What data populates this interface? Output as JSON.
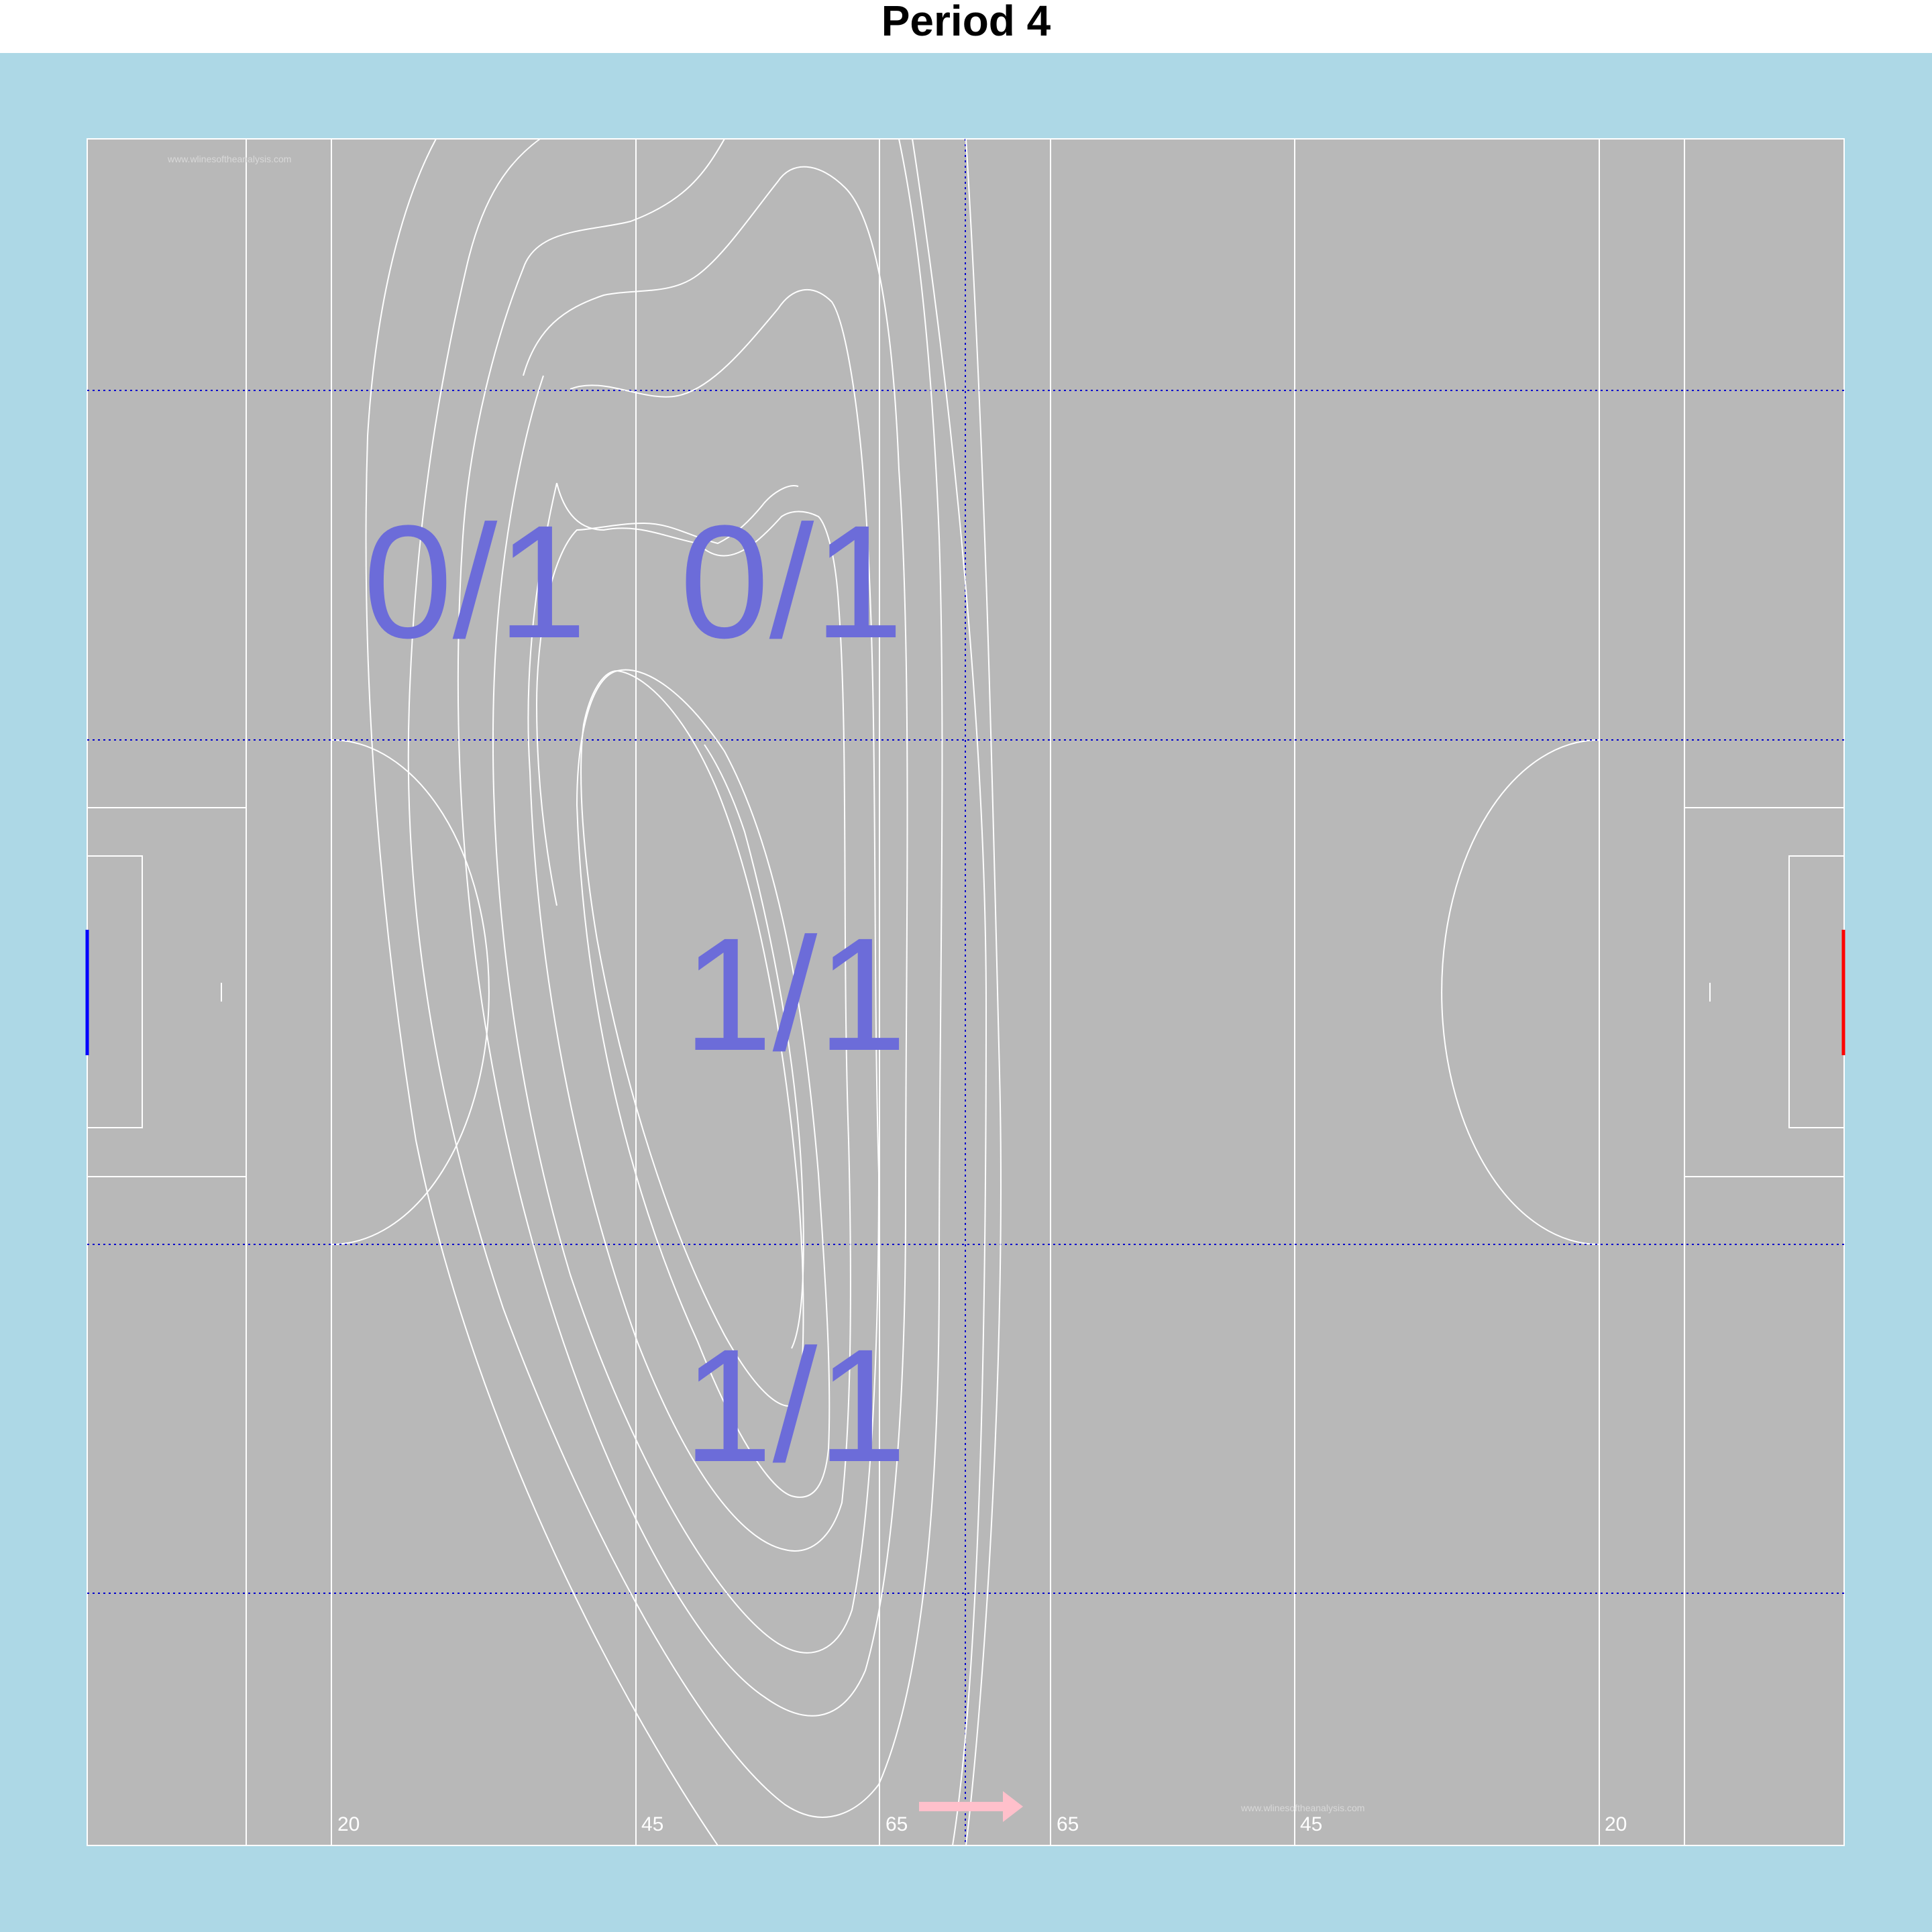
{
  "title": "Period 4",
  "colors": {
    "background": "#add8e6",
    "pitch": "#b8b8b8",
    "lines": "#ffffff",
    "grid": "#0000cd",
    "labels": "#6c6cd9",
    "left_goal": "#0000ff",
    "right_goal": "#ff0000",
    "arrow": "#ffc0cb"
  },
  "watermark": "www.wlinesoftheanalysis.com",
  "distance_labels": [
    "20",
    "45",
    "65",
    "65",
    "45",
    "20"
  ],
  "zone_labels": [
    {
      "text": "0/1"
    },
    {
      "text": "0/1"
    },
    {
      "text": "1/1"
    },
    {
      "text": "1/1"
    }
  ],
  "attack_direction": "right",
  "goals": [
    {
      "side": "left",
      "color": "#0000ff"
    },
    {
      "side": "right",
      "color": "#ff0000"
    }
  ]
}
